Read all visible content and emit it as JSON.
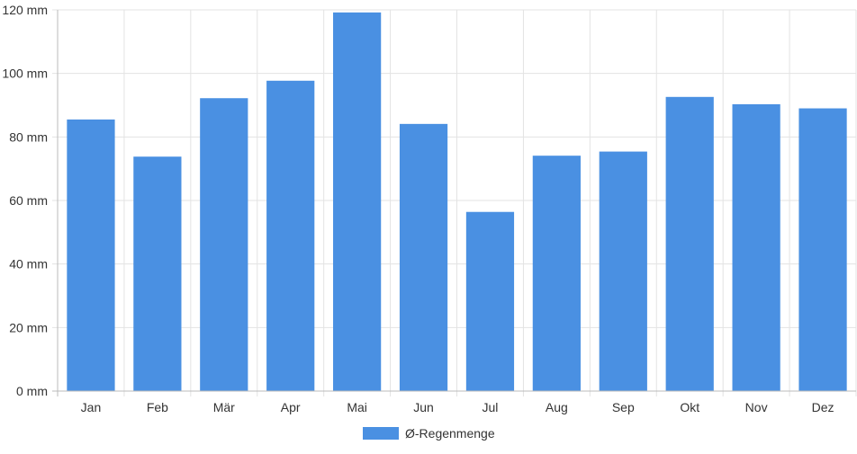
{
  "chart_data": {
    "type": "bar",
    "categories": [
      "Jan",
      "Feb",
      "Mär",
      "Apr",
      "Mai",
      "Jun",
      "Jul",
      "Aug",
      "Sep",
      "Okt",
      "Nov",
      "Dez"
    ],
    "series": [
      {
        "name": "Ø-Regenmenge",
        "values": [
          85.5,
          73.8,
          92.2,
          97.7,
          119.2,
          84.1,
          56.4,
          74.1,
          75.4,
          92.6,
          90.3,
          89.0
        ],
        "color": "#4a90e2"
      }
    ],
    "y_ticks": [
      "0 mm",
      "20 mm",
      "40 mm",
      "60 mm",
      "80 mm",
      "100 mm",
      "120 mm"
    ],
    "ylim": [
      0,
      120
    ],
    "grid": true,
    "legend_position": "bottom"
  }
}
